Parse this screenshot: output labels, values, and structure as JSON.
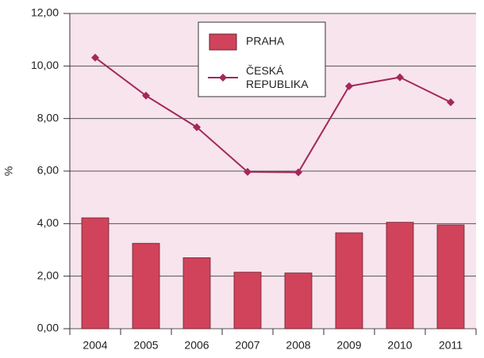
{
  "chart_data": {
    "type": "bar",
    "ylabel": "%",
    "categories": [
      "2004",
      "2005",
      "2006",
      "2007",
      "2008",
      "2009",
      "2010",
      "2011"
    ],
    "series": [
      {
        "name": "PRAHA",
        "type": "bar",
        "color": "#d0435b",
        "values": [
          4.22,
          3.25,
          2.7,
          2.15,
          2.12,
          3.65,
          4.05,
          3.95
        ]
      },
      {
        "name": "ČESKÁ REPUBLIKA",
        "type": "line",
        "color": "#a3285b",
        "values": [
          10.32,
          8.87,
          7.67,
          5.97,
          5.95,
          9.23,
          9.57,
          8.62
        ]
      }
    ],
    "ylim": [
      0,
      12
    ],
    "yticks": [
      {
        "value": 0,
        "label": "0,00"
      },
      {
        "value": 2,
        "label": "2,00"
      },
      {
        "value": 4,
        "label": "4,00"
      },
      {
        "value": 6,
        "label": "6,00"
      },
      {
        "value": 8,
        "label": "8,00"
      },
      {
        "value": 10,
        "label": "10,00"
      },
      {
        "value": 12,
        "label": "12,00"
      }
    ],
    "grid": true,
    "legend": "top-center"
  }
}
